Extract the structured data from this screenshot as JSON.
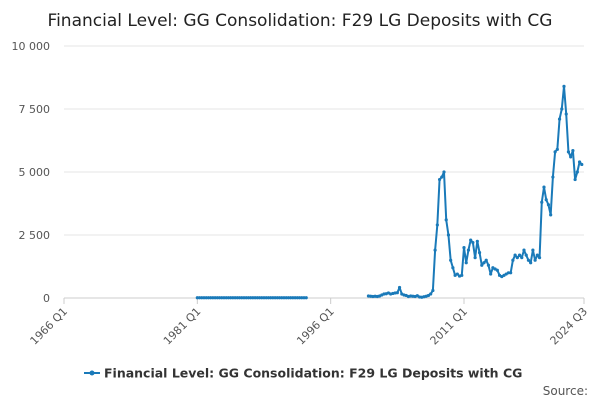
{
  "chart_data": {
    "type": "line",
    "title": "Financial Level: GG Consolidation: F29 LG Deposits with CG",
    "xlabel": "",
    "ylabel": "",
    "x_ticks": [
      "1966 Q1",
      "1981 Q1",
      "1996 Q1",
      "2011 Q1",
      "2024 Q3"
    ],
    "y_ticks": [
      "0",
      "2 500",
      "5 000",
      "7 500",
      "10 000"
    ],
    "ylim": [
      0,
      10000
    ],
    "grid": true,
    "legend_position": "bottom",
    "series": [
      {
        "name": "Financial Level: GG Consolidation: F29 LG Deposits with CG",
        "color": "#1a7ab9",
        "segments": [
          [
            [
              "1981 Q1",
              10
            ],
            [
              "1981 Q2",
              10
            ],
            [
              "1981 Q3",
              10
            ],
            [
              "1981 Q4",
              10
            ],
            [
              "1982 Q1",
              10
            ],
            [
              "1982 Q2",
              10
            ],
            [
              "1982 Q3",
              10
            ],
            [
              "1982 Q4",
              10
            ],
            [
              "1983 Q1",
              10
            ],
            [
              "1983 Q2",
              10
            ],
            [
              "1983 Q3",
              10
            ],
            [
              "1983 Q4",
              10
            ],
            [
              "1984 Q1",
              10
            ],
            [
              "1984 Q2",
              10
            ],
            [
              "1984 Q3",
              10
            ],
            [
              "1984 Q4",
              10
            ],
            [
              "1985 Q1",
              10
            ],
            [
              "1985 Q2",
              10
            ],
            [
              "1985 Q3",
              10
            ],
            [
              "1985 Q4",
              10
            ],
            [
              "1986 Q1",
              10
            ],
            [
              "1986 Q2",
              10
            ],
            [
              "1986 Q3",
              10
            ],
            [
              "1986 Q4",
              10
            ],
            [
              "1987 Q1",
              10
            ],
            [
              "1987 Q2",
              10
            ],
            [
              "1987 Q3",
              10
            ],
            [
              "1987 Q4",
              10
            ],
            [
              "1988 Q1",
              10
            ],
            [
              "1988 Q2",
              10
            ],
            [
              "1988 Q3",
              10
            ],
            [
              "1988 Q4",
              10
            ],
            [
              "1989 Q1",
              10
            ],
            [
              "1989 Q2",
              10
            ],
            [
              "1989 Q3",
              10
            ],
            [
              "1989 Q4",
              10
            ],
            [
              "1990 Q1",
              10
            ],
            [
              "1990 Q2",
              10
            ],
            [
              "1990 Q3",
              10
            ],
            [
              "1990 Q4",
              10
            ],
            [
              "1991 Q1",
              10
            ],
            [
              "1991 Q2",
              10
            ],
            [
              "1991 Q3",
              10
            ],
            [
              "1991 Q4",
              10
            ],
            [
              "1992 Q1",
              10
            ],
            [
              "1992 Q2",
              10
            ],
            [
              "1992 Q3",
              10
            ],
            [
              "1992 Q4",
              10
            ],
            [
              "1993 Q1",
              10
            ],
            [
              "1993 Q2",
              10
            ]
          ],
          [
            [
              "2000 Q2",
              80
            ],
            [
              "2000 Q3",
              70
            ],
            [
              "2000 Q4",
              60
            ],
            [
              "2001 Q1",
              70
            ],
            [
              "2001 Q2",
              60
            ],
            [
              "2001 Q3",
              80
            ],
            [
              "2001 Q4",
              120
            ],
            [
              "2002 Q1",
              160
            ],
            [
              "2002 Q2",
              170
            ],
            [
              "2002 Q3",
              200
            ],
            [
              "2002 Q4",
              160
            ],
            [
              "2003 Q1",
              180
            ],
            [
              "2003 Q2",
              200
            ],
            [
              "2003 Q3",
              210
            ],
            [
              "2003 Q4",
              420
            ],
            [
              "2004 Q1",
              160
            ],
            [
              "2004 Q2",
              120
            ],
            [
              "2004 Q3",
              100
            ],
            [
              "2004 Q4",
              60
            ],
            [
              "2005 Q1",
              80
            ],
            [
              "2005 Q2",
              70
            ],
            [
              "2005 Q3",
              60
            ],
            [
              "2005 Q4",
              90
            ],
            [
              "2006 Q1",
              40
            ],
            [
              "2006 Q2",
              30
            ],
            [
              "2006 Q3",
              50
            ],
            [
              "2006 Q4",
              70
            ],
            [
              "2007 Q1",
              100
            ],
            [
              "2007 Q2",
              160
            ],
            [
              "2007 Q3",
              300
            ],
            [
              "2007 Q4",
              1900
            ],
            [
              "2008 Q1",
              2900
            ],
            [
              "2008 Q2",
              4700
            ],
            [
              "2008 Q3",
              4800
            ],
            [
              "2008 Q4",
              5000
            ],
            [
              "2009 Q1",
              3100
            ],
            [
              "2009 Q2",
              2500
            ],
            [
              "2009 Q3",
              1500
            ],
            [
              "2009 Q4",
              1200
            ],
            [
              "2010 Q1",
              900
            ],
            [
              "2010 Q2",
              950
            ],
            [
              "2010 Q3",
              870
            ],
            [
              "2010 Q4",
              900
            ],
            [
              "2011 Q1",
              2000
            ],
            [
              "2011 Q2",
              1400
            ],
            [
              "2011 Q3",
              1900
            ],
            [
              "2011 Q4",
              2300
            ],
            [
              "2012 Q1",
              2200
            ],
            [
              "2012 Q2",
              1600
            ],
            [
              "2012 Q3",
              2250
            ],
            [
              "2012 Q4",
              1800
            ],
            [
              "2013 Q1",
              1300
            ],
            [
              "2013 Q2",
              1400
            ],
            [
              "2013 Q3",
              1500
            ],
            [
              "2013 Q4",
              1300
            ],
            [
              "2014 Q1",
              950
            ],
            [
              "2014 Q2",
              1200
            ],
            [
              "2014 Q3",
              1150
            ],
            [
              "2014 Q4",
              1100
            ],
            [
              "2015 Q1",
              900
            ],
            [
              "2015 Q2",
              850
            ],
            [
              "2015 Q3",
              900
            ],
            [
              "2015 Q4",
              950
            ],
            [
              "2016 Q1",
              1000
            ],
            [
              "2016 Q2",
              1000
            ],
            [
              "2016 Q3",
              1500
            ],
            [
              "2016 Q4",
              1700
            ],
            [
              "2017 Q1",
              1600
            ],
            [
              "2017 Q2",
              1700
            ],
            [
              "2017 Q3",
              1600
            ],
            [
              "2017 Q4",
              1900
            ],
            [
              "2018 Q1",
              1700
            ],
            [
              "2018 Q2",
              1500
            ],
            [
              "2018 Q3",
              1400
            ],
            [
              "2018 Q4",
              1900
            ],
            [
              "2019 Q1",
              1500
            ],
            [
              "2019 Q2",
              1700
            ],
            [
              "2019 Q3",
              1600
            ],
            [
              "2019 Q4",
              3800
            ],
            [
              "2020 Q1",
              4400
            ],
            [
              "2020 Q2",
              3900
            ],
            [
              "2020 Q3",
              3700
            ],
            [
              "2020 Q4",
              3300
            ],
            [
              "2021 Q1",
              4800
            ],
            [
              "2021 Q2",
              5800
            ],
            [
              "2021 Q3",
              5900
            ],
            [
              "2021 Q4",
              7100
            ],
            [
              "2022 Q1",
              7500
            ],
            [
              "2022 Q2",
              8400
            ],
            [
              "2022 Q3",
              7300
            ],
            [
              "2022 Q4",
              5800
            ],
            [
              "2023 Q1",
              5600
            ],
            [
              "2023 Q2",
              5850
            ],
            [
              "2023 Q3",
              4700
            ],
            [
              "2023 Q4",
              5000
            ],
            [
              "2024 Q1",
              5400
            ],
            [
              "2024 Q2",
              5300
            ]
          ]
        ]
      }
    ],
    "legend": "Financial Level: GG Consolidation: F29 LG Deposits with CG",
    "source_label": "Source:"
  }
}
